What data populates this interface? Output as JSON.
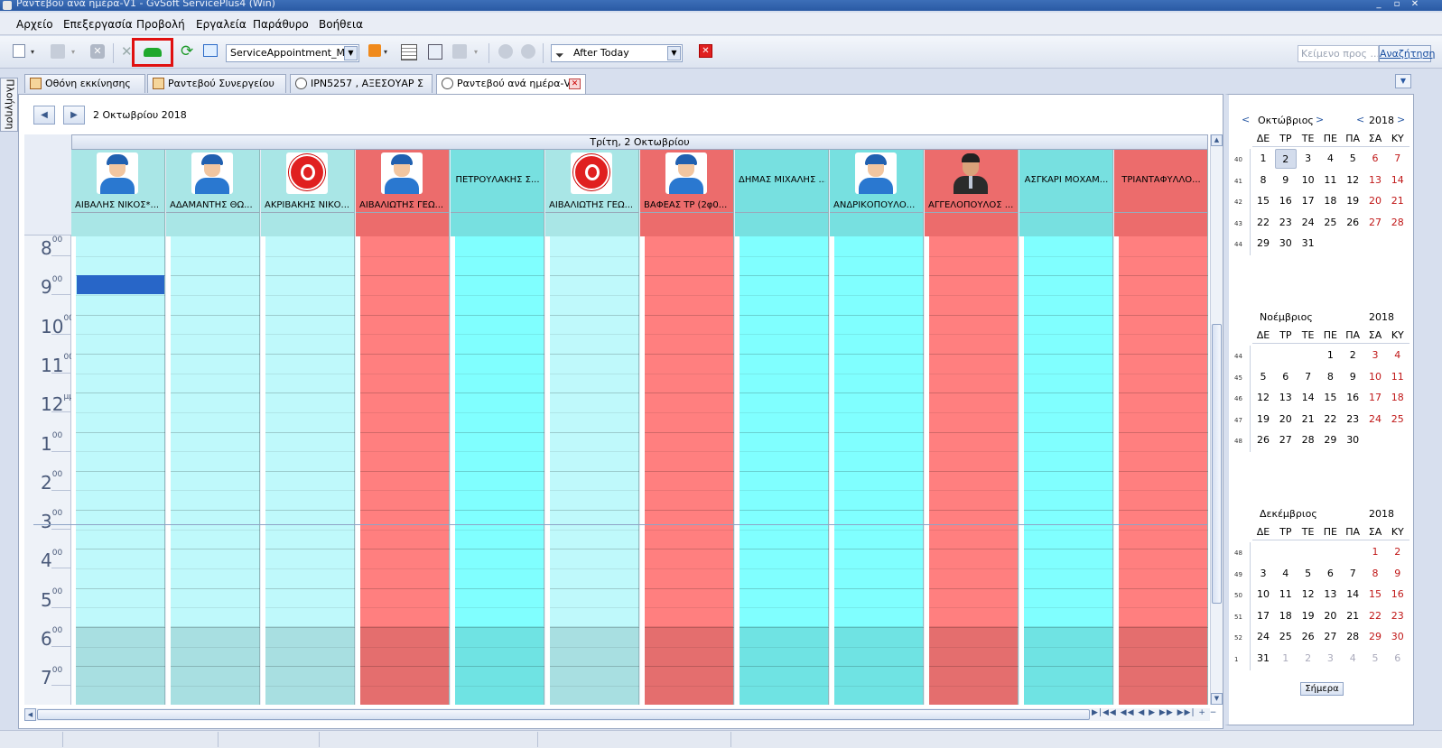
{
  "window": {
    "title": "Ραντεβού ανά ημέρα-V1 - GvSoft ServicePlus4 (Win)"
  },
  "menu": [
    "Αρχείο",
    "Επεξεργασία",
    "Προβολή",
    "Εργαλεία",
    "Παράθυρο",
    "Βοήθεια"
  ],
  "toolbar": {
    "view_combo": "ServiceAppointment_M...",
    "filter_combo": "After Today",
    "search_placeholder": "Κείμενο προς ...",
    "search_button": "Αναζήτηση"
  },
  "tabs": [
    {
      "label": "Οθόνη εκκίνησης"
    },
    {
      "label": "Ραντεβού  Συνεργείου"
    },
    {
      "label": "ΙΡΝ5257 , ΑΞΕΣΟΥΑΡ Σ"
    },
    {
      "label": "Ραντεβού ανά ημέρα-V"
    }
  ],
  "side_label": "Πλοήγηση",
  "scheduler": {
    "date": "2 Οκτωβρίου 2018",
    "day_header": "Τρίτη, 2 Οκτωβρίου",
    "hours": [
      {
        "h": "8",
        "s": "00"
      },
      {
        "h": "9",
        "s": "00"
      },
      {
        "h": "10",
        "s": "00"
      },
      {
        "h": "11",
        "s": "00"
      },
      {
        "h": "12",
        "s": "μμ"
      },
      {
        "h": "1",
        "s": "00"
      },
      {
        "h": "2",
        "s": "00"
      },
      {
        "h": "3",
        "s": "00"
      },
      {
        "h": "4",
        "s": "00"
      },
      {
        "h": "5",
        "s": "00"
      },
      {
        "h": "6",
        "s": "00"
      },
      {
        "h": "7",
        "s": "00"
      }
    ],
    "resources": [
      {
        "name": "ΑΪΒΑΛΗΣ ΝΙΚΟΣ*...",
        "color": "#bff9fb",
        "avatar": "worker"
      },
      {
        "name": "ΑΔΑΜΑΝΤΗΣ ΘΩ...",
        "color": "#bff9fb",
        "avatar": "worker"
      },
      {
        "name": "ΑΚΡΙΒΑΚΗΣ  ΝΙΚΟ...",
        "color": "#bff9fb",
        "avatar": "red"
      },
      {
        "name": "ΑΙΒΑΛΙΩΤΗΣ ΓΕΩ...",
        "color": "#ff7f7f",
        "avatar": "worker"
      },
      {
        "name": "ΠΕΤΡΟΥΛΑΚΗΣ Σ...",
        "color": "#80ffff",
        "avatar": "none"
      },
      {
        "name": "ΑΙΒΑΛΙΩΤΗΣ ΓΕΩ...",
        "color": "#bff9fb",
        "avatar": "red"
      },
      {
        "name": "ΒΑΦΕΑΣ ΤΡ  (2φ0...",
        "color": "#ff7f7f",
        "avatar": "worker"
      },
      {
        "name": "ΔΗΜΑΣ ΜΙΧΑΛΗΣ ...",
        "color": "#80ffff",
        "avatar": "none"
      },
      {
        "name": "ΑΝΔΡΙΚΟΠΟΥΛΟ...",
        "color": "#80ffff",
        "avatar": "worker"
      },
      {
        "name": "ΑΓΓΕΛΟΠΟΥΛΟΣ ...",
        "color": "#ff7f7f",
        "avatar": "suit"
      },
      {
        "name": "ΑΣΓΚΑΡΙ ΜΟΧΑΜ...",
        "color": "#80ffff",
        "avatar": "none"
      },
      {
        "name": "ΤΡΙΑΝΤΑΦΥΛΛΟ...",
        "color": "#ff7f7f",
        "avatar": "none"
      }
    ]
  },
  "calendar": {
    "dows": [
      "ΔΕ",
      "ΤΡ",
      "ΤΕ",
      "ΠΕ",
      "ΠΑ",
      "ΣΑ",
      "ΚΥ"
    ],
    "today_button": "Σήμερα",
    "months": [
      {
        "name": "Οκτώβριος",
        "year": "2018",
        "weeks": [
          {
            "wk": "40",
            "days": [
              "1",
              "2",
              "3",
              "4",
              "5",
              "6",
              "7"
            ]
          },
          {
            "wk": "41",
            "days": [
              "8",
              "9",
              "10",
              "11",
              "12",
              "13",
              "14"
            ]
          },
          {
            "wk": "42",
            "days": [
              "15",
              "16",
              "17",
              "18",
              "19",
              "20",
              "21"
            ]
          },
          {
            "wk": "43",
            "days": [
              "22",
              "23",
              "24",
              "25",
              "26",
              "27",
              "28"
            ]
          },
          {
            "wk": "44",
            "days": [
              "29",
              "30",
              "31",
              "",
              "",
              "",
              ""
            ]
          }
        ]
      },
      {
        "name": "Νοέμβριος",
        "year": "2018",
        "weeks": [
          {
            "wk": "44",
            "days": [
              "",
              "",
              "",
              "1",
              "2",
              "3",
              "4"
            ]
          },
          {
            "wk": "45",
            "days": [
              "5",
              "6",
              "7",
              "8",
              "9",
              "10",
              "11"
            ]
          },
          {
            "wk": "46",
            "days": [
              "12",
              "13",
              "14",
              "15",
              "16",
              "17",
              "18"
            ]
          },
          {
            "wk": "47",
            "days": [
              "19",
              "20",
              "21",
              "22",
              "23",
              "24",
              "25"
            ]
          },
          {
            "wk": "48",
            "days": [
              "26",
              "27",
              "28",
              "29",
              "30",
              "",
              ""
            ]
          }
        ]
      },
      {
        "name": "Δεκέμβριος",
        "year": "2018",
        "weeks": [
          {
            "wk": "48",
            "days": [
              "",
              "",
              "",
              "",
              "",
              "1",
              "2"
            ]
          },
          {
            "wk": "49",
            "days": [
              "3",
              "4",
              "5",
              "6",
              "7",
              "8",
              "9"
            ]
          },
          {
            "wk": "50",
            "days": [
              "10",
              "11",
              "12",
              "13",
              "14",
              "15",
              "16"
            ]
          },
          {
            "wk": "51",
            "days": [
              "17",
              "18",
              "19",
              "20",
              "21",
              "22",
              "23"
            ]
          },
          {
            "wk": "52",
            "days": [
              "24",
              "25",
              "26",
              "27",
              "28",
              "29",
              "30"
            ]
          },
          {
            "wk": "1",
            "days": [
              "31",
              "1",
              "2",
              "3",
              "4",
              "5",
              "6"
            ]
          }
        ]
      }
    ]
  }
}
